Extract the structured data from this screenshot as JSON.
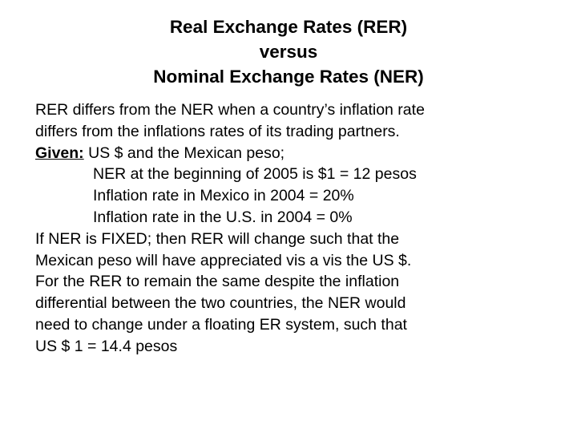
{
  "title": {
    "line1": "Real Exchange Rates (RER)",
    "line2": "versus",
    "line3": "Nominal Exchange Rates (NER)"
  },
  "body": {
    "para1": {
      "line1": "RER differs from the NER when a country’s inflation rate",
      "line2": "differs from the inflations rates of its trading partners."
    },
    "given": {
      "label": "Given:",
      "text": " US $ and the Mexican peso;",
      "items": [
        "NER at the beginning of 2005 is $1 = 12 pesos",
        "Inflation rate in Mexico in 2004 = 20%",
        "Inflation rate in the U.S. in 2004 = 0%"
      ]
    },
    "para2": {
      "line1": "If NER is FIXED; then RER will change such that the",
      "line2": "Mexican peso will have appreciated vis a vis the US $."
    },
    "para3": {
      "line1": "For the RER to remain the same despite the inflation",
      "line2": "differential between the two countries, the NER would",
      "line3": "need to change under a floating ER system, such that",
      "line4": "US $ 1 = 14.4 pesos"
    }
  }
}
